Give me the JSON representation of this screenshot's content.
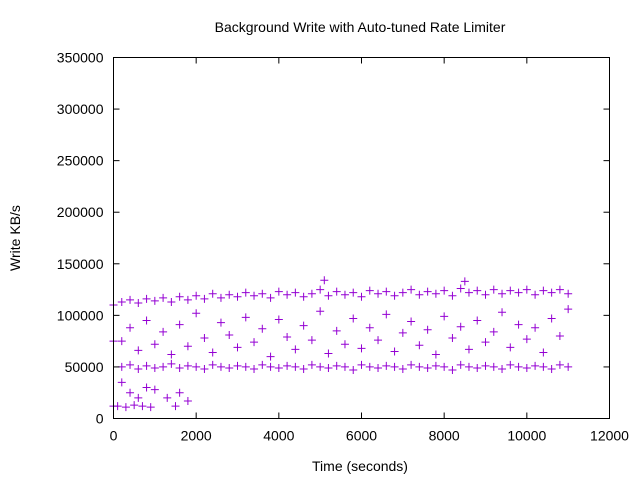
{
  "chart_data": {
    "type": "scatter",
    "title": "Background Write with Auto-tuned Rate Limiter",
    "xlabel": "Time (seconds)",
    "ylabel": "Write KB/s",
    "xlim": [
      0,
      12000
    ],
    "ylim": [
      0,
      350000
    ],
    "xticks": [
      0,
      2000,
      4000,
      6000,
      8000,
      10000,
      12000
    ],
    "yticks": [
      0,
      50000,
      100000,
      150000,
      200000,
      250000,
      300000,
      350000
    ],
    "grid": false,
    "marker": "plus",
    "color": "#9400d3",
    "points": [
      [
        0,
        75000
      ],
      [
        0,
        12000
      ],
      [
        0,
        110000
      ],
      [
        200,
        113000
      ],
      [
        200,
        50000
      ],
      [
        200,
        75000
      ],
      [
        400,
        115000
      ],
      [
        400,
        52000
      ],
      [
        400,
        88000
      ],
      [
        600,
        112000
      ],
      [
        600,
        48000
      ],
      [
        600,
        66000
      ],
      [
        800,
        116000
      ],
      [
        800,
        51000
      ],
      [
        800,
        95000
      ],
      [
        1000,
        114000
      ],
      [
        1000,
        49000
      ],
      [
        1000,
        72000
      ],
      [
        1200,
        117000
      ],
      [
        1200,
        50000
      ],
      [
        1200,
        84000
      ],
      [
        1400,
        113000
      ],
      [
        1400,
        53000
      ],
      [
        1400,
        62000
      ],
      [
        1600,
        118000
      ],
      [
        1600,
        49000
      ],
      [
        1600,
        91000
      ],
      [
        1800,
        115000
      ],
      [
        1800,
        51000
      ],
      [
        1800,
        70000
      ],
      [
        2000,
        119000
      ],
      [
        2000,
        50000
      ],
      [
        2000,
        102000
      ],
      [
        2200,
        116000
      ],
      [
        2200,
        48000
      ],
      [
        2200,
        78000
      ],
      [
        2400,
        121000
      ],
      [
        2400,
        52000
      ],
      [
        2400,
        64000
      ],
      [
        2600,
        117000
      ],
      [
        2600,
        50000
      ],
      [
        2600,
        93000
      ],
      [
        2800,
        120000
      ],
      [
        2800,
        49000
      ],
      [
        2800,
        81000
      ],
      [
        3000,
        118000
      ],
      [
        3000,
        51000
      ],
      [
        3000,
        69000
      ],
      [
        3200,
        122000
      ],
      [
        3200,
        50000
      ],
      [
        3200,
        98000
      ],
      [
        3400,
        119000
      ],
      [
        3400,
        48000
      ],
      [
        3400,
        74000
      ],
      [
        3600,
        121000
      ],
      [
        3600,
        52000
      ],
      [
        3600,
        87000
      ],
      [
        3800,
        117000
      ],
      [
        3800,
        50000
      ],
      [
        3800,
        60000
      ],
      [
        4000,
        123000
      ],
      [
        4000,
        49000
      ],
      [
        4000,
        96000
      ],
      [
        4200,
        120000
      ],
      [
        4200,
        51000
      ],
      [
        4200,
        79000
      ],
      [
        4400,
        122000
      ],
      [
        4400,
        50000
      ],
      [
        4400,
        67000
      ],
      [
        4600,
        118000
      ],
      [
        4600,
        48000
      ],
      [
        4600,
        90000
      ],
      [
        4800,
        121000
      ],
      [
        4800,
        52000
      ],
      [
        4800,
        76000
      ],
      [
        5000,
        125000
      ],
      [
        5000,
        50000
      ],
      [
        5000,
        104000
      ],
      [
        5200,
        119000
      ],
      [
        5200,
        49000
      ],
      [
        5200,
        63000
      ],
      [
        5400,
        123000
      ],
      [
        5400,
        51000
      ],
      [
        5400,
        85000
      ],
      [
        5600,
        120000
      ],
      [
        5600,
        50000
      ],
      [
        5600,
        72000
      ],
      [
        5800,
        122000
      ],
      [
        5800,
        47000
      ],
      [
        5800,
        97000
      ],
      [
        6000,
        118000
      ],
      [
        6000,
        52000
      ],
      [
        6000,
        68000
      ],
      [
        6200,
        124000
      ],
      [
        6200,
        50000
      ],
      [
        6200,
        88000
      ],
      [
        6400,
        121000
      ],
      [
        6400,
        49000
      ],
      [
        6400,
        76000
      ],
      [
        6600,
        123000
      ],
      [
        6600,
        51000
      ],
      [
        6600,
        101000
      ],
      [
        6800,
        119000
      ],
      [
        6800,
        50000
      ],
      [
        6800,
        65000
      ],
      [
        7000,
        122000
      ],
      [
        7000,
        48000
      ],
      [
        7000,
        83000
      ],
      [
        7200,
        125000
      ],
      [
        7200,
        52000
      ],
      [
        7200,
        94000
      ],
      [
        7400,
        120000
      ],
      [
        7400,
        50000
      ],
      [
        7400,
        71000
      ],
      [
        7600,
        123000
      ],
      [
        7600,
        49000
      ],
      [
        7600,
        86000
      ],
      [
        7800,
        121000
      ],
      [
        7800,
        51000
      ],
      [
        7800,
        62000
      ],
      [
        8000,
        124000
      ],
      [
        8000,
        50000
      ],
      [
        8000,
        99000
      ],
      [
        8200,
        119000
      ],
      [
        8200,
        47000
      ],
      [
        8200,
        78000
      ],
      [
        8400,
        126000
      ],
      [
        8400,
        52000
      ],
      [
        8400,
        89000
      ],
      [
        8600,
        122000
      ],
      [
        8600,
        50000
      ],
      [
        8600,
        67000
      ],
      [
        8800,
        124000
      ],
      [
        8800,
        49000
      ],
      [
        8800,
        95000
      ],
      [
        9000,
        120000
      ],
      [
        9000,
        51000
      ],
      [
        9000,
        74000
      ],
      [
        9200,
        125000
      ],
      [
        9200,
        50000
      ],
      [
        9200,
        84000
      ],
      [
        9400,
        121000
      ],
      [
        9400,
        48000
      ],
      [
        9400,
        103000
      ],
      [
        9600,
        124000
      ],
      [
        9600,
        52000
      ],
      [
        9600,
        69000
      ],
      [
        9800,
        122000
      ],
      [
        9800,
        50000
      ],
      [
        9800,
        91000
      ],
      [
        10000,
        125000
      ],
      [
        10000,
        49000
      ],
      [
        10000,
        77000
      ],
      [
        10200,
        120000
      ],
      [
        10200,
        51000
      ],
      [
        10200,
        88000
      ],
      [
        10400,
        124000
      ],
      [
        10400,
        50000
      ],
      [
        10400,
        64000
      ],
      [
        10600,
        122000
      ],
      [
        10600,
        48000
      ],
      [
        10600,
        97000
      ],
      [
        10800,
        125000
      ],
      [
        10800,
        52000
      ],
      [
        10800,
        80000
      ],
      [
        11000,
        121000
      ],
      [
        11000,
        50000
      ],
      [
        11000,
        106000
      ],
      [
        100,
        12000
      ],
      [
        300,
        11000
      ],
      [
        500,
        13000
      ],
      [
        700,
        12000
      ],
      [
        900,
        11000
      ],
      [
        1500,
        12000
      ],
      [
        400,
        25000
      ],
      [
        800,
        30000
      ],
      [
        1300,
        20000
      ],
      [
        1600,
        25000
      ],
      [
        1800,
        17000
      ],
      [
        200,
        35000
      ],
      [
        600,
        20000
      ],
      [
        1000,
        28000
      ],
      [
        5100,
        134000
      ],
      [
        8500,
        133000
      ]
    ]
  }
}
